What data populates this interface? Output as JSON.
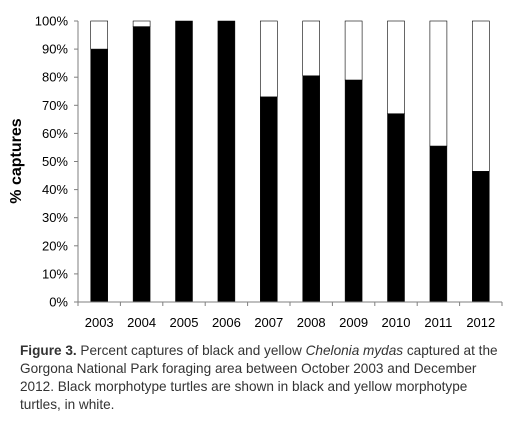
{
  "chart_data": {
    "type": "bar",
    "stacked": true,
    "categories": [
      "2003",
      "2004",
      "2005",
      "2006",
      "2007",
      "2008",
      "2009",
      "2010",
      "2011",
      "2012"
    ],
    "series": [
      {
        "color": "#000000",
        "values": [
          90,
          98,
          100,
          100,
          73,
          80.5,
          79,
          67,
          55.5,
          46.5
        ]
      },
      {
        "color": "#ffffff",
        "values": [
          10,
          2,
          0,
          0,
          27,
          19.5,
          21,
          33,
          44.5,
          53.5
        ]
      }
    ],
    "xlabel": "",
    "ylabel": "% captures",
    "ylim": [
      0,
      100
    ],
    "yticks": [
      "0%",
      "10%",
      "20%",
      "30%",
      "40%",
      "50%",
      "60%",
      "70%",
      "80%",
      "90%",
      "100%"
    ],
    "grid": false,
    "legend": "none"
  },
  "caption": {
    "label": "Figure 3.",
    "part1": " Percent captures of black and yellow ",
    "species": "Chelonia mydas",
    "part2": " captured at the Gorgona National Park foraging area between October 2003 and December 2012. Black morphotype turtles are shown in black and yellow morphotype turtles, in white."
  }
}
